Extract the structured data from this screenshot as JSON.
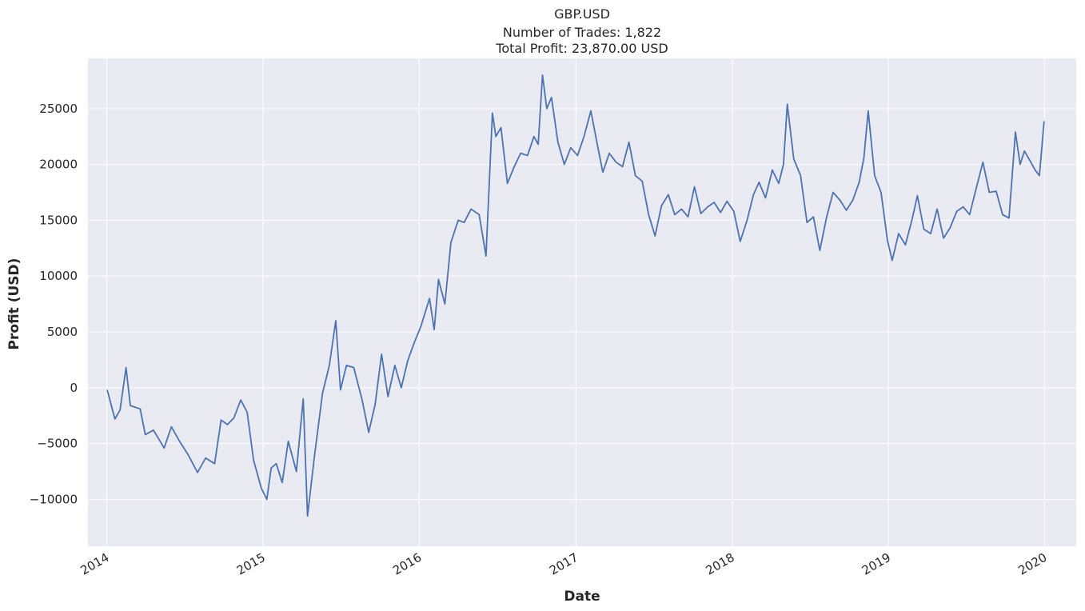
{
  "chart_data": {
    "type": "line",
    "title": "GBP.USD",
    "subtitle_lines": [
      "Number of Trades: 1,822",
      "Total Profit: 23,870.00 USD"
    ],
    "xlabel": "Date",
    "ylabel": "Profit (USD)",
    "xlim": [
      "2013-11-18",
      "2020-03-15"
    ],
    "ylim": [
      -14200,
      29500
    ],
    "x_ticks": [
      "2014-01-01",
      "2015-01-01",
      "2016-01-01",
      "2017-01-01",
      "2018-01-01",
      "2019-01-01",
      "2020-01-01"
    ],
    "x_tick_labels": [
      "2014",
      "2015",
      "2016",
      "2017",
      "2018",
      "2019",
      "2020"
    ],
    "y_ticks": [
      -10000,
      -5000,
      0,
      5000,
      10000,
      15000,
      20000,
      25000
    ],
    "y_tick_labels": [
      "−10000",
      "−5000",
      "0",
      "5000",
      "10000",
      "15000",
      "20000",
      "25000"
    ],
    "grid": true,
    "background": "#eaeaf2",
    "series": [
      {
        "color": "#4c72b0",
        "x": [
          "2014-01-02",
          "2014-01-20",
          "2014-02-01",
          "2014-02-15",
          "2014-02-25",
          "2014-03-20",
          "2014-04-01",
          "2014-04-20",
          "2014-05-15",
          "2014-06-01",
          "2014-06-20",
          "2014-07-10",
          "2014-08-01",
          "2014-08-20",
          "2014-09-10",
          "2014-09-25",
          "2014-10-10",
          "2014-10-25",
          "2014-11-10",
          "2014-11-25",
          "2014-12-10",
          "2014-12-28",
          "2015-01-10",
          "2015-01-20",
          "2015-02-01",
          "2015-02-15",
          "2015-03-01",
          "2015-03-20",
          "2015-04-05",
          "2015-04-15",
          "2015-05-01",
          "2015-05-20",
          "2015-06-05",
          "2015-06-20",
          "2015-07-01",
          "2015-07-15",
          "2015-08-01",
          "2015-08-20",
          "2015-09-05",
          "2015-09-20",
          "2015-10-05",
          "2015-10-20",
          "2015-11-05",
          "2015-11-20",
          "2015-12-05",
          "2015-12-20",
          "2016-01-05",
          "2016-01-25",
          "2016-02-05",
          "2016-02-15",
          "2016-03-01",
          "2016-03-15",
          "2016-04-01",
          "2016-04-15",
          "2016-05-01",
          "2016-05-20",
          "2016-06-05",
          "2016-06-20",
          "2016-06-28",
          "2016-07-10",
          "2016-07-25",
          "2016-08-10",
          "2016-08-25",
          "2016-09-10",
          "2016-09-25",
          "2016-10-05",
          "2016-10-15",
          "2016-10-25",
          "2016-11-05",
          "2016-11-20",
          "2016-12-05",
          "2016-12-20",
          "2017-01-05",
          "2017-01-20",
          "2017-02-05",
          "2017-02-20",
          "2017-03-05",
          "2017-03-20",
          "2017-04-05",
          "2017-04-20",
          "2017-05-05",
          "2017-05-20",
          "2017-06-05",
          "2017-06-20",
          "2017-07-05",
          "2017-07-20",
          "2017-08-05",
          "2017-08-20",
          "2017-09-05",
          "2017-09-20",
          "2017-10-05",
          "2017-10-20",
          "2017-11-05",
          "2017-11-20",
          "2017-12-05",
          "2017-12-20",
          "2018-01-05",
          "2018-01-20",
          "2018-02-05",
          "2018-02-20",
          "2018-03-05",
          "2018-03-20",
          "2018-04-05",
          "2018-04-20",
          "2018-05-01",
          "2018-05-10",
          "2018-05-25",
          "2018-06-10",
          "2018-06-25",
          "2018-07-10",
          "2018-07-25",
          "2018-08-10",
          "2018-08-25",
          "2018-09-10",
          "2018-09-25",
          "2018-10-10",
          "2018-10-25",
          "2018-11-05",
          "2018-11-15",
          "2018-11-30",
          "2018-12-15",
          "2018-12-30",
          "2019-01-10",
          "2019-01-25",
          "2019-02-10",
          "2019-02-25",
          "2019-03-10",
          "2019-03-25",
          "2019-04-10",
          "2019-04-25",
          "2019-05-10",
          "2019-05-25",
          "2019-06-10",
          "2019-06-25",
          "2019-07-10",
          "2019-07-25",
          "2019-08-10",
          "2019-08-25",
          "2019-09-10",
          "2019-09-25",
          "2019-10-10",
          "2019-10-25",
          "2019-11-05",
          "2019-11-15",
          "2019-11-30",
          "2019-12-10",
          "2019-12-20",
          "2019-12-31"
        ],
        "y": [
          -200,
          -2800,
          -2000,
          1800,
          -1600,
          -1900,
          -4200,
          -3800,
          -5400,
          -3500,
          -4800,
          -6000,
          -7600,
          -6300,
          -6800,
          -2900,
          -3300,
          -2700,
          -1100,
          -2200,
          -6500,
          -9000,
          -10000,
          -7200,
          -6800,
          -8500,
          -4800,
          -7500,
          -1000,
          -11500,
          -6200,
          -500,
          2000,
          6000,
          -200,
          2000,
          1800,
          -1000,
          -4000,
          -1500,
          3000,
          -800,
          2000,
          0,
          2400,
          4000,
          5500,
          8000,
          5200,
          9700,
          7500,
          13000,
          15000,
          14800,
          16000,
          15500,
          11800,
          24600,
          22500,
          23300,
          18300,
          19800,
          21000,
          20800,
          22500,
          21800,
          28000,
          25000,
          26000,
          22000,
          20000,
          21500,
          20800,
          22500,
          24800,
          21800,
          19300,
          21000,
          20200,
          19800,
          22000,
          19000,
          18500,
          15500,
          13600,
          16300,
          17300,
          15500,
          16000,
          15300,
          18000,
          15600,
          16200,
          16600,
          15700,
          16700,
          15800,
          13100,
          15000,
          17300,
          18400,
          17000,
          19500,
          18300,
          20000,
          25400,
          20500,
          19000,
          14800,
          15300,
          12300,
          15300,
          17500,
          16800,
          15900,
          16800,
          18400,
          20600,
          24800,
          19000,
          17500,
          13200,
          11400,
          13800,
          12800,
          15000,
          17200,
          14200,
          13800,
          16000,
          13400,
          14300,
          15800,
          16200,
          15500,
          17800,
          20200,
          17500,
          17600,
          15500,
          15200,
          22900,
          20000,
          21200,
          20200,
          19500,
          19000,
          23870
        ]
      }
    ]
  }
}
